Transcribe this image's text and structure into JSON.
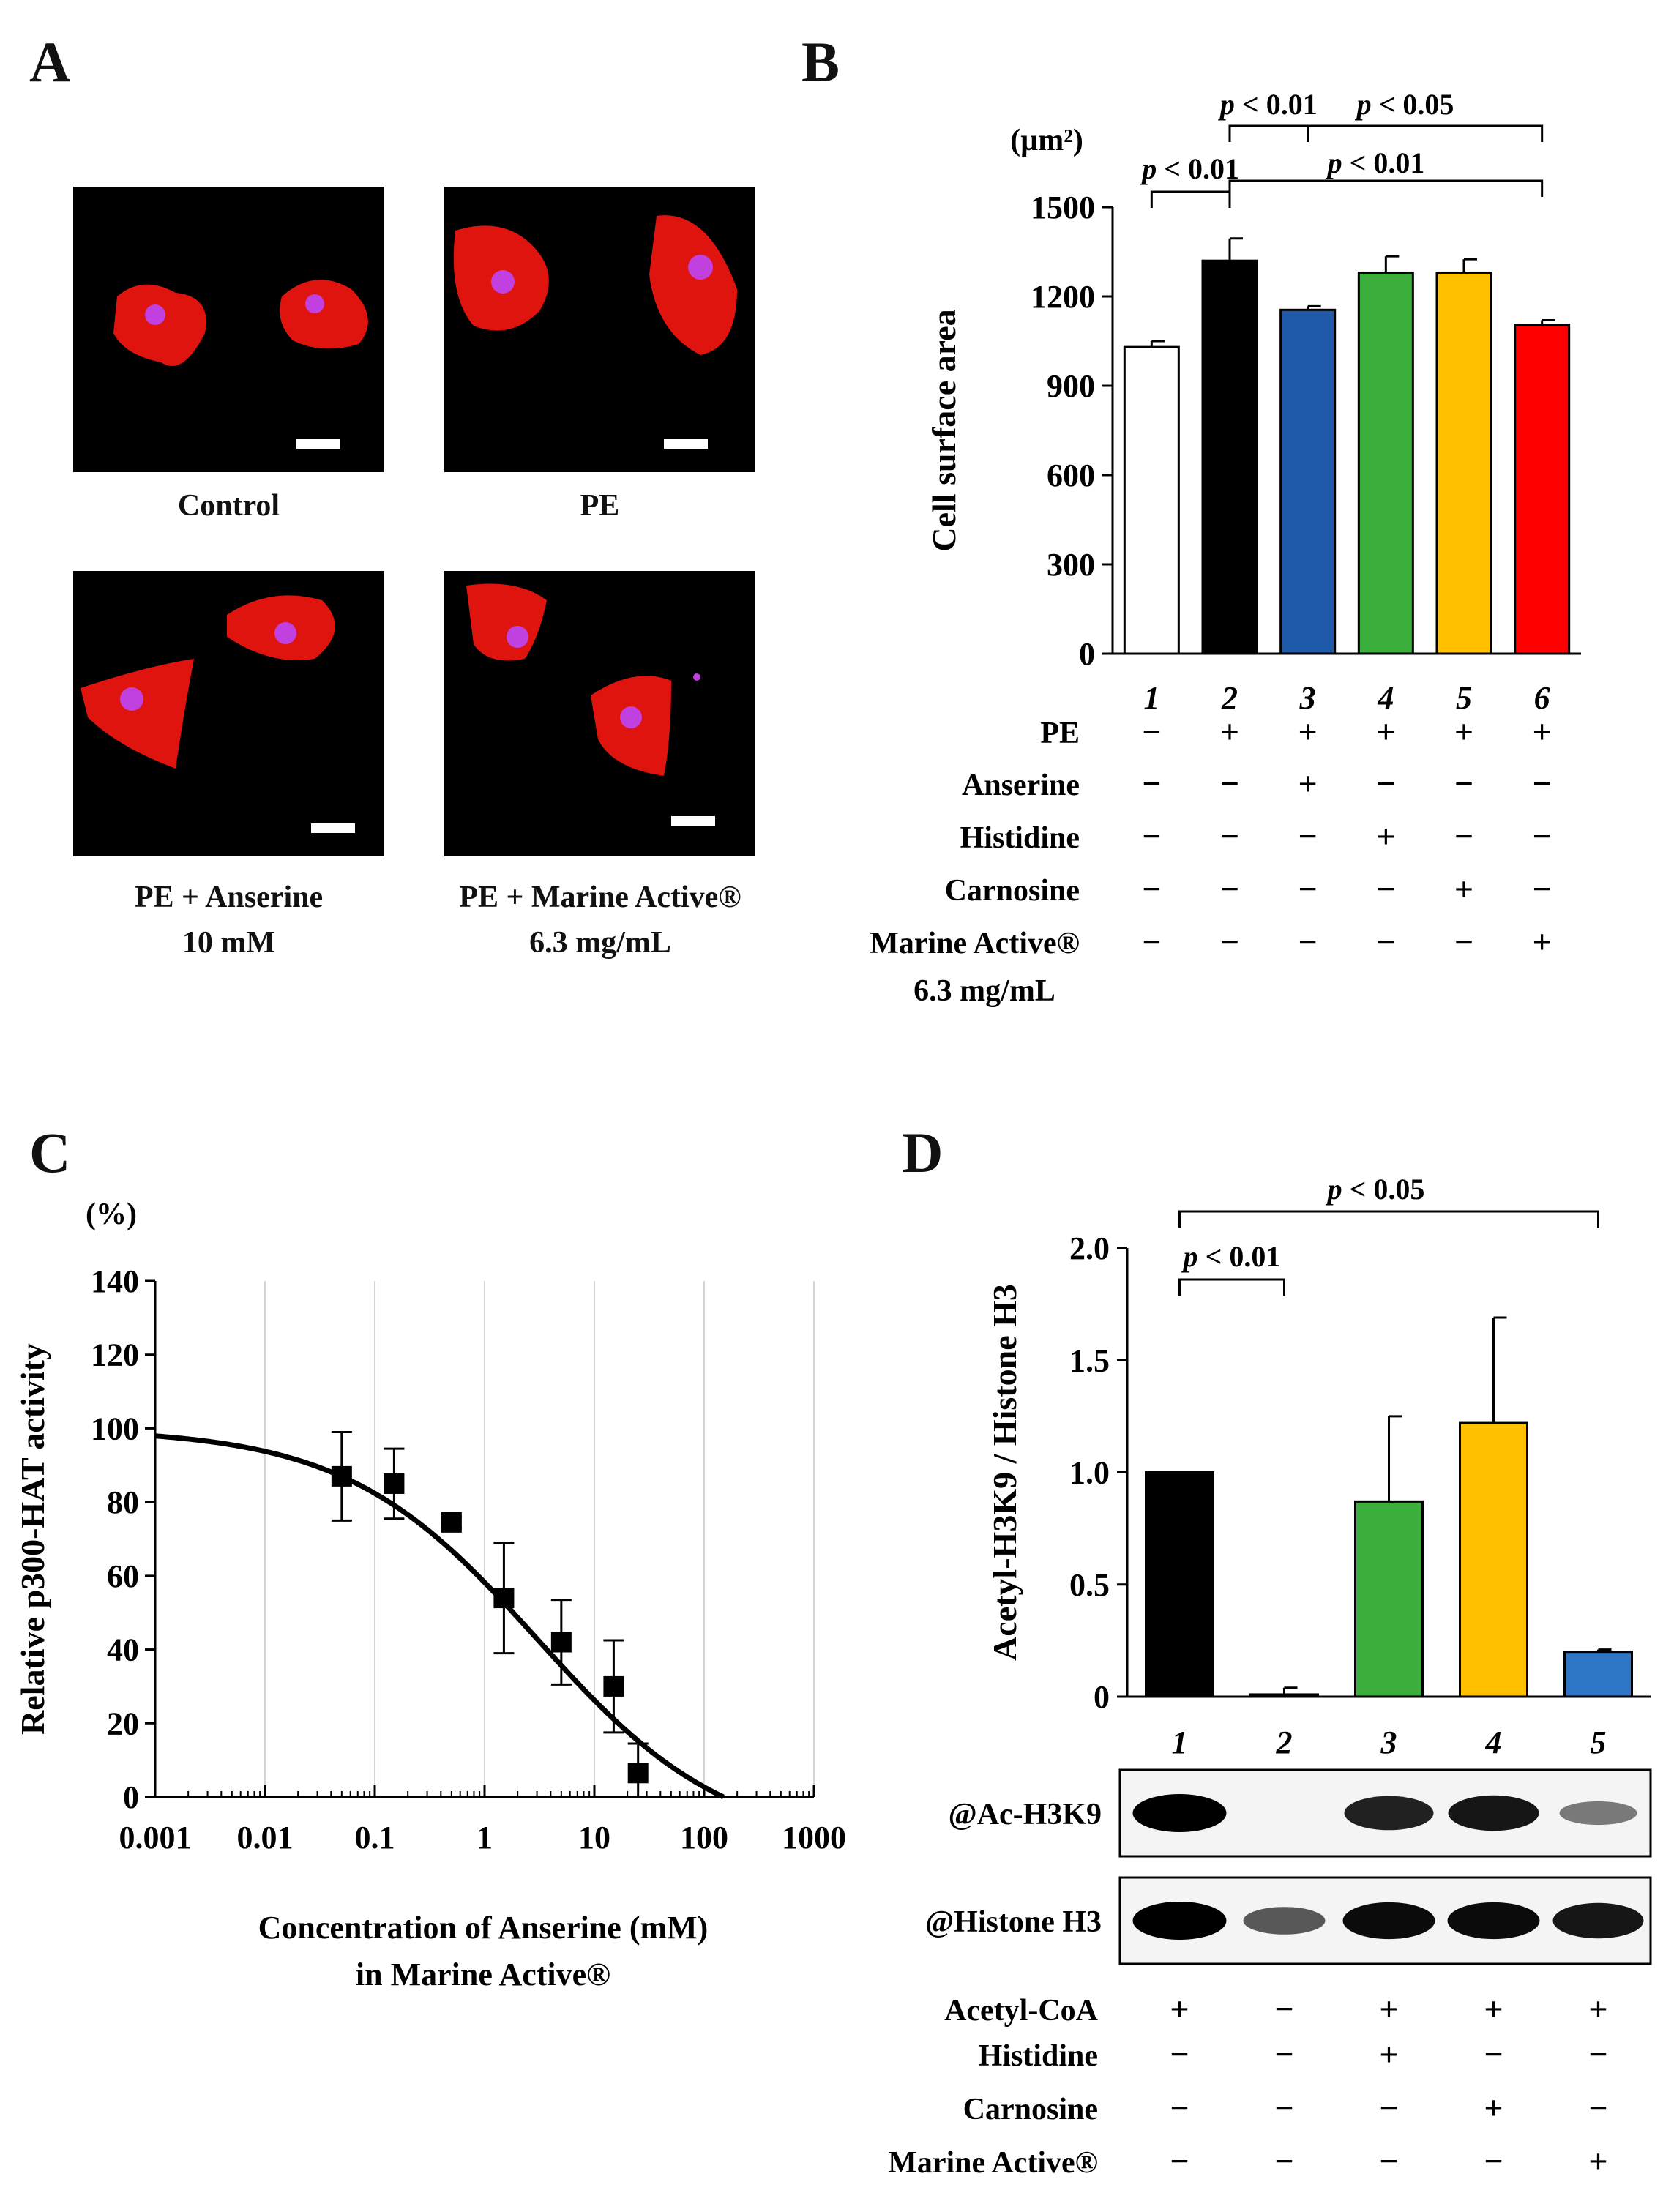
{
  "panel_letters": [
    "A",
    "B",
    "C",
    "D"
  ],
  "panel_a": {
    "images": [
      {
        "caption_lines": [
          "Control"
        ]
      },
      {
        "caption_lines": [
          "PE"
        ]
      },
      {
        "caption_lines": [
          "PE + Anserine",
          "10 mM"
        ]
      },
      {
        "caption_lines": [
          "PE + Marine Active®",
          "6.3 mg/mL"
        ]
      }
    ]
  },
  "colors": {
    "black": "#000000",
    "blue": "#1f5aa8",
    "green": "#3cae3c",
    "yellow": "#ffc000",
    "red": "#ff0000",
    "blot_blue": "#2e75c6",
    "cell_red": "#e0140f",
    "nucleus": "#c040e0"
  },
  "chart_data": [
    {
      "panel": "B",
      "type": "bar",
      "unit_label": "(µm²)",
      "ylabel": "Cell surface area",
      "ylim": [
        0,
        1500
      ],
      "yticks": [
        0,
        300,
        600,
        900,
        1200,
        1500
      ],
      "categories": [
        "1",
        "2",
        "3",
        "4",
        "5",
        "6"
      ],
      "values": [
        1030,
        1320,
        1155,
        1280,
        1280,
        1105
      ],
      "errors": [
        20,
        75,
        12,
        55,
        45,
        15
      ],
      "bar_colors": [
        "#ffffff",
        "#000000",
        "#1f5aa8",
        "#3cae3c",
        "#ffc000",
        "#ff0000"
      ],
      "significance": [
        {
          "from": "1",
          "to": "2",
          "label": "p < 0.01"
        },
        {
          "from": "2",
          "to": "3",
          "label": "p < 0.01"
        },
        {
          "from": "3",
          "to": "6",
          "label": "p < 0.05"
        },
        {
          "from": "2",
          "to": "6",
          "label": "p < 0.01"
        }
      ],
      "treatment_table": [
        {
          "label": "PE",
          "signs": [
            "−",
            "+",
            "+",
            "+",
            "+",
            "+"
          ]
        },
        {
          "label": "Anserine",
          "signs": [
            "−",
            "−",
            "+",
            "−",
            "−",
            "−"
          ]
        },
        {
          "label": "Histidine",
          "signs": [
            "−",
            "−",
            "−",
            "+",
            "−",
            "−"
          ]
        },
        {
          "label": "Carnosine",
          "signs": [
            "−",
            "−",
            "−",
            "−",
            "+",
            "−"
          ]
        },
        {
          "label": "Marine Active®",
          "label2": "6.3 mg/mL",
          "signs": [
            "−",
            "−",
            "−",
            "−",
            "−",
            "+"
          ]
        }
      ]
    },
    {
      "panel": "C",
      "type": "scatter",
      "unit_label": "(%)",
      "ylabel": "Relative p300-HAT  activity",
      "xlabel_lines": [
        "Concentration  of Anserine (mM)",
        "in Marine Active®"
      ],
      "x_scale": "log",
      "xlim": [
        0.001,
        1000
      ],
      "xticks": [
        "0.001",
        "0.01",
        "0.1",
        "1",
        "10",
        "100",
        "1000"
      ],
      "ylim": [
        0,
        140
      ],
      "yticks": [
        0,
        20,
        40,
        60,
        80,
        100,
        120,
        140
      ],
      "grid": "vertical",
      "points": [
        {
          "x": 0.05,
          "y": 87,
          "err": 12
        },
        {
          "x": 0.15,
          "y": 85,
          "err": 9.5
        },
        {
          "x": 0.5,
          "y": 74.5,
          "err": 1.5
        },
        {
          "x": 1.5,
          "y": 54,
          "err": 15
        },
        {
          "x": 5,
          "y": 42,
          "err": 11.5
        },
        {
          "x": 15,
          "y": 30,
          "err": 12.5
        },
        {
          "x": 25,
          "y": 6.5,
          "err": 8
        }
      ],
      "fit_curve": {
        "top": 100,
        "ic50": 3,
        "hill": 0.5,
        "zero_at": 150
      }
    },
    {
      "panel": "D",
      "type": "bar",
      "ylabel": "Acetyl-H3K9 / Histone H3",
      "ylim": [
        0,
        2.0
      ],
      "yticks": [
        "0",
        "0.5",
        "1.0",
        "1.5",
        "2.0"
      ],
      "categories": [
        "1",
        "2",
        "3",
        "4",
        "5"
      ],
      "values": [
        1.0,
        0.01,
        0.87,
        1.22,
        0.2
      ],
      "errors": [
        0,
        0.03,
        0.38,
        0.47,
        0.01
      ],
      "bar_colors": [
        "#000000",
        "#000000",
        "#3cae3c",
        "#ffc000",
        "#2e75c6"
      ],
      "significance": [
        {
          "from": "1",
          "to": "2",
          "label": "p < 0.01"
        },
        {
          "from": "1",
          "to": "5",
          "label": "p < 0.05"
        }
      ],
      "blots": [
        {
          "label": "@Ac-H3K9",
          "band_intensity": [
            1.0,
            0.0,
            0.85,
            0.9,
            0.45
          ]
        },
        {
          "label": "@Histone H3",
          "band_intensity": [
            1.0,
            0.6,
            0.95,
            0.95,
            0.9
          ]
        }
      ],
      "treatment_table": [
        {
          "label": "Acetyl-CoA",
          "signs": [
            "+",
            "−",
            "+",
            "+",
            "+"
          ]
        },
        {
          "label": "Histidine",
          "signs": [
            "−",
            "−",
            "+",
            "−",
            "−"
          ]
        },
        {
          "label": "Carnosine",
          "signs": [
            "−",
            "−",
            "−",
            "+",
            "−"
          ]
        },
        {
          "label": "Marine Active®",
          "signs": [
            "−",
            "−",
            "−",
            "−",
            "+"
          ]
        }
      ]
    }
  ]
}
